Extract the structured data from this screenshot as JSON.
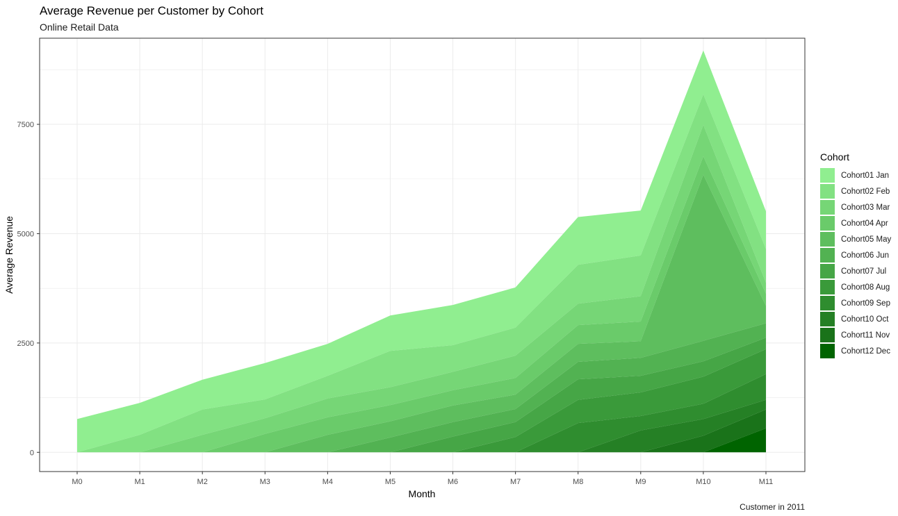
{
  "chart_data": {
    "type": "area",
    "stacked": true,
    "title": "Average Revenue per Customer by Cohort",
    "subtitle": "Online Retail Data",
    "caption": "Customer in 2011",
    "xlabel": "Month",
    "ylabel": "Average Revenue",
    "legend_title": "Cohort",
    "legend_position": "right",
    "grid": true,
    "categories": [
      "M0",
      "M1",
      "M2",
      "M3",
      "M4",
      "M5",
      "M6",
      "M7",
      "M8",
      "M9",
      "M10",
      "M11"
    ],
    "yticks": [
      0,
      2500,
      5000,
      7500
    ],
    "ylim": [
      -440,
      9470
    ],
    "series": [
      {
        "name": "Cohort01 Jan",
        "color": "#90EE90",
        "values": [
          760,
          730,
          680,
          830,
          730,
          810,
          920,
          920,
          1090,
          1030,
          1000,
          860
        ]
      },
      {
        "name": "Cohort02 Feb",
        "color": "#82E182",
        "values": [
          0,
          400,
          580,
          430,
          520,
          830,
          610,
          640,
          890,
          930,
          700,
          770
        ]
      },
      {
        "name": "Cohort03 Mar",
        "color": "#76D676",
        "values": [
          0,
          0,
          400,
          360,
          430,
          410,
          420,
          510,
          490,
          580,
          720,
          250
        ]
      },
      {
        "name": "Cohort04 Apr",
        "color": "#6ACB6A",
        "values": [
          0,
          0,
          0,
          420,
          400,
          370,
          350,
          380,
          430,
          450,
          420,
          280
        ]
      },
      {
        "name": "Cohort05 May",
        "color": "#5EBE5E",
        "values": [
          0,
          0,
          0,
          0,
          400,
          370,
          380,
          330,
          410,
          380,
          3800,
          400
        ]
      },
      {
        "name": "Cohort06 Jun",
        "color": "#52B252",
        "values": [
          0,
          0,
          0,
          0,
          0,
          340,
          330,
          300,
          400,
          410,
          470,
          330
        ]
      },
      {
        "name": "Cohort07 Jul",
        "color": "#46A646",
        "values": [
          0,
          0,
          0,
          0,
          0,
          0,
          360,
          340,
          470,
          380,
          350,
          260
        ]
      },
      {
        "name": "Cohort08 Aug",
        "color": "#3A9A3A",
        "values": [
          0,
          0,
          0,
          0,
          0,
          0,
          0,
          350,
          530,
          540,
          620,
          570
        ]
      },
      {
        "name": "Cohort09 Sep",
        "color": "#2F8D2F",
        "values": [
          0,
          0,
          0,
          0,
          0,
          0,
          0,
          0,
          670,
          330,
          350,
          590
        ]
      },
      {
        "name": "Cohort10 Oct",
        "color": "#258025",
        "values": [
          0,
          0,
          0,
          0,
          0,
          0,
          0,
          0,
          0,
          500,
          380,
          220
        ]
      },
      {
        "name": "Cohort11 Nov",
        "color": "#1A731A",
        "values": [
          0,
          0,
          0,
          0,
          0,
          0,
          0,
          0,
          0,
          0,
          380,
          430
        ]
      },
      {
        "name": "Cohort12 Dec",
        "color": "#006400",
        "values": [
          0,
          0,
          0,
          0,
          0,
          0,
          0,
          0,
          0,
          0,
          0,
          550
        ]
      }
    ]
  }
}
